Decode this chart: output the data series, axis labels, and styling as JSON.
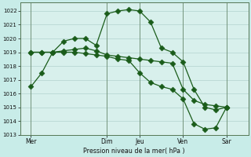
{
  "bg_color": "#c8ece8",
  "plot_bg": "#d8f0ec",
  "grid_color": "#b8d8d4",
  "line_color": "#1a5c1a",
  "ylabel": "Pression niveau de la mer( hPa )",
  "ylim": [
    1013.0,
    1022.6
  ],
  "yticks": [
    1013,
    1014,
    1015,
    1016,
    1017,
    1018,
    1019,
    1020,
    1021,
    1022
  ],
  "xtick_labels": [
    "Mer",
    "Dim",
    "Jeu",
    "Ven",
    "Sar"
  ],
  "xtick_positions": [
    0.5,
    4.0,
    5.5,
    7.5,
    9.5
  ],
  "xlim": [
    0.0,
    10.5
  ],
  "vline_positions": [
    0.5,
    4.0,
    5.5,
    7.5,
    9.5
  ],
  "line1_x": [
    0.5,
    1.0,
    1.5,
    2.0,
    2.5,
    3.0,
    3.5,
    4.0,
    4.5,
    5.0,
    5.5,
    6.0,
    6.5,
    7.0,
    7.5,
    8.0,
    8.5,
    9.0,
    9.5
  ],
  "line1_y": [
    1016.5,
    1017.5,
    1019.0,
    1019.8,
    1020.0,
    1020.0,
    1019.5,
    1021.8,
    1022.0,
    1022.1,
    1022.0,
    1021.2,
    1019.3,
    1019.0,
    1018.3,
    1016.3,
    1015.0,
    1014.8,
    1015.0
  ],
  "line2_x": [
    0.5,
    1.0,
    1.5,
    2.0,
    2.5,
    3.0,
    3.5,
    4.0,
    4.5,
    5.0,
    5.5,
    6.0,
    6.5,
    7.0,
    7.5,
    8.0,
    8.5,
    9.0,
    9.5
  ],
  "line2_y": [
    1019.0,
    1019.0,
    1019.0,
    1019.1,
    1019.2,
    1019.3,
    1019.1,
    1018.8,
    1018.7,
    1018.6,
    1018.5,
    1018.4,
    1018.3,
    1018.2,
    1016.3,
    1015.5,
    1015.2,
    1015.1,
    1015.0
  ],
  "line3_x": [
    0.5,
    1.0,
    1.5,
    2.0,
    2.5,
    3.0,
    3.5,
    4.0,
    4.5,
    5.0,
    5.5,
    6.0,
    6.5,
    7.0,
    7.5,
    8.0,
    8.5,
    9.0,
    9.5
  ],
  "line3_y": [
    1019.0,
    1019.0,
    1019.0,
    1019.0,
    1019.0,
    1018.9,
    1018.8,
    1018.7,
    1018.5,
    1018.4,
    1017.5,
    1016.8,
    1016.5,
    1016.3,
    1015.6,
    1013.8,
    1013.4,
    1013.5,
    1015.0
  ]
}
